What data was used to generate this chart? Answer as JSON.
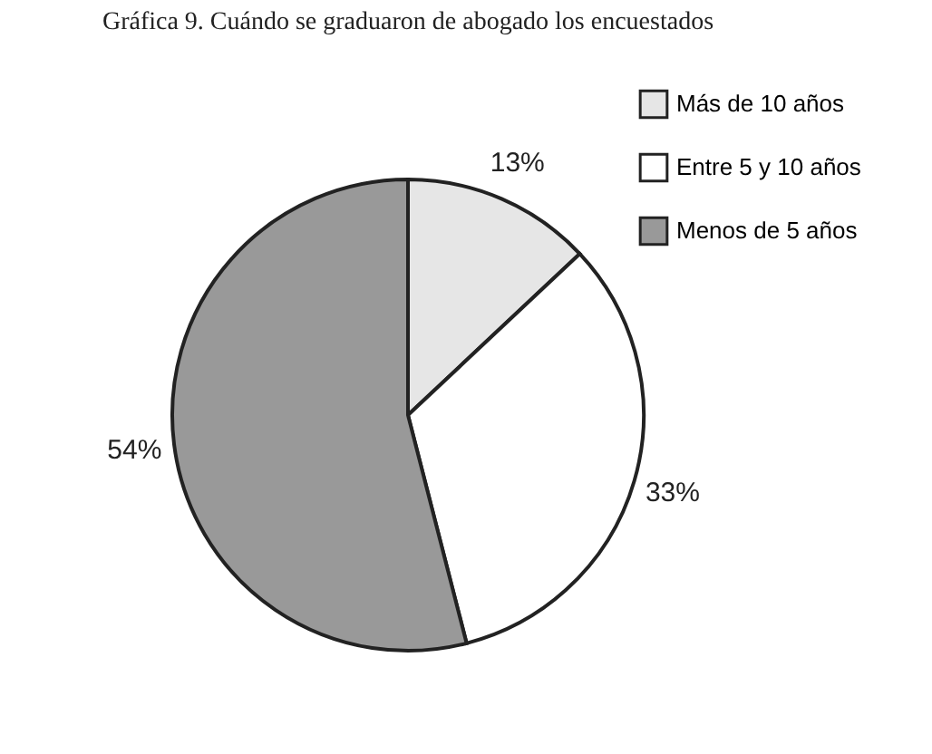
{
  "chart_data": {
    "type": "pie",
    "title": "Gráfica 9. Cuándo se graduaron de abogado los encuestados",
    "categories": [
      "Más de 10 años",
      "Entre 5 y 10 años",
      "Menos de 5 años"
    ],
    "values": [
      13,
      33,
      54
    ],
    "colors": [
      "#e6e6e6",
      "#ffffff",
      "#999999"
    ],
    "value_labels": [
      "13%",
      "33%",
      "54%"
    ],
    "legend": "top right"
  }
}
